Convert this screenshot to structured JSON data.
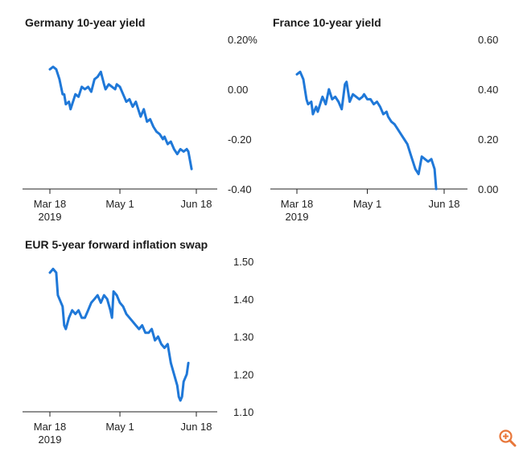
{
  "chart_data": [
    {
      "id": "germany",
      "type": "line",
      "title": "Germany 10-year yield",
      "x_ticks": [
        {
          "day": 0,
          "label": "Mar 18",
          "sub": "2019"
        },
        {
          "day": 44,
          "label": "May 1",
          "sub": ""
        },
        {
          "day": 92,
          "label": "Jun 18",
          "sub": ""
        }
      ],
      "y_ticks": [
        {
          "value": 0.2,
          "label": "0.20%"
        },
        {
          "value": 0.0,
          "label": "0.00"
        },
        {
          "value": -0.2,
          "label": "-0.20"
        },
        {
          "value": -0.4,
          "label": "-0.40"
        }
      ],
      "ylim": [
        -0.4,
        0.2
      ],
      "series": [
        {
          "name": "Germany 10-year yield",
          "color": "#1f78d8",
          "x": [
            0,
            2,
            4,
            6,
            8,
            9,
            10,
            12,
            13,
            15,
            16,
            18,
            20,
            22,
            24,
            26,
            28,
            30,
            32,
            34,
            35,
            37,
            39,
            41,
            42,
            44,
            46,
            48,
            50,
            52,
            54,
            56,
            57,
            59,
            61,
            63,
            65,
            67,
            69,
            71,
            72,
            74,
            76,
            78,
            80,
            82,
            84,
            86,
            87,
            89
          ],
          "y": [
            0.08,
            0.09,
            0.08,
            0.04,
            -0.02,
            -0.02,
            -0.06,
            -0.05,
            -0.08,
            -0.04,
            -0.02,
            -0.03,
            0.01,
            0.0,
            0.01,
            -0.01,
            0.04,
            0.05,
            0.07,
            0.02,
            0.0,
            0.02,
            0.01,
            0.0,
            0.02,
            0.01,
            -0.02,
            -0.05,
            -0.04,
            -0.07,
            -0.05,
            -0.09,
            -0.11,
            -0.08,
            -0.13,
            -0.12,
            -0.15,
            -0.17,
            -0.18,
            -0.2,
            -0.19,
            -0.22,
            -0.21,
            -0.24,
            -0.26,
            -0.24,
            -0.25,
            -0.24,
            -0.25,
            -0.32
          ]
        }
      ]
    },
    {
      "id": "france",
      "type": "line",
      "title": "France 10-year yield",
      "x_ticks": [
        {
          "day": 0,
          "label": "Mar 18",
          "sub": "2019"
        },
        {
          "day": 44,
          "label": "May 1",
          "sub": ""
        },
        {
          "day": 92,
          "label": "Jun 18",
          "sub": ""
        }
      ],
      "y_ticks": [
        {
          "value": 0.6,
          "label": "0.60"
        },
        {
          "value": 0.4,
          "label": "0.40"
        },
        {
          "value": 0.2,
          "label": "0.20"
        },
        {
          "value": 0.0,
          "label": "0.00"
        }
      ],
      "ylim": [
        0.0,
        0.6
      ],
      "series": [
        {
          "name": "France 10-year yield",
          "color": "#1f78d8",
          "x": [
            0,
            2,
            4,
            6,
            7,
            9,
            10,
            12,
            13,
            15,
            16,
            18,
            20,
            22,
            24,
            26,
            28,
            30,
            31,
            33,
            35,
            37,
            39,
            41,
            42,
            44,
            46,
            48,
            50,
            52,
            54,
            56,
            57,
            59,
            61,
            63,
            65,
            67,
            69,
            71,
            72,
            74,
            76,
            78,
            80,
            82,
            84,
            86,
            87
          ],
          "y": [
            0.46,
            0.47,
            0.44,
            0.36,
            0.34,
            0.35,
            0.3,
            0.33,
            0.31,
            0.35,
            0.37,
            0.34,
            0.4,
            0.36,
            0.37,
            0.35,
            0.32,
            0.42,
            0.43,
            0.35,
            0.38,
            0.37,
            0.36,
            0.37,
            0.38,
            0.36,
            0.36,
            0.34,
            0.35,
            0.33,
            0.3,
            0.31,
            0.29,
            0.27,
            0.26,
            0.24,
            0.22,
            0.2,
            0.18,
            0.14,
            0.12,
            0.08,
            0.06,
            0.13,
            0.12,
            0.11,
            0.12,
            0.08,
            0.0
          ]
        }
      ]
    },
    {
      "id": "inflation",
      "type": "line",
      "title": "EUR 5-year forward inflation swap",
      "x_ticks": [
        {
          "day": 0,
          "label": "Mar 18",
          "sub": "2019"
        },
        {
          "day": 44,
          "label": "May 1",
          "sub": ""
        },
        {
          "day": 92,
          "label": "Jun 18",
          "sub": ""
        }
      ],
      "y_ticks": [
        {
          "value": 1.5,
          "label": "1.50"
        },
        {
          "value": 1.4,
          "label": "1.40"
        },
        {
          "value": 1.3,
          "label": "1.30"
        },
        {
          "value": 1.2,
          "label": "1.20"
        },
        {
          "value": 1.1,
          "label": "1.10"
        }
      ],
      "ylim": [
        1.1,
        1.5
      ],
      "series": [
        {
          "name": "EUR 5-year forward inflation swap",
          "color": "#1f78d8",
          "x": [
            0,
            2,
            4,
            5,
            6,
            8,
            9,
            10,
            12,
            14,
            16,
            18,
            20,
            22,
            24,
            26,
            28,
            30,
            32,
            34,
            36,
            38,
            39,
            40,
            42,
            44,
            46,
            48,
            50,
            52,
            54,
            56,
            58,
            60,
            62,
            64,
            66,
            68,
            70,
            72,
            74,
            76,
            78,
            80,
            81,
            82,
            83,
            84,
            86,
            87
          ],
          "y": [
            1.47,
            1.48,
            1.47,
            1.41,
            1.4,
            1.38,
            1.33,
            1.32,
            1.35,
            1.37,
            1.36,
            1.37,
            1.35,
            1.35,
            1.37,
            1.39,
            1.4,
            1.41,
            1.39,
            1.41,
            1.4,
            1.37,
            1.35,
            1.42,
            1.41,
            1.39,
            1.38,
            1.36,
            1.35,
            1.34,
            1.33,
            1.32,
            1.33,
            1.31,
            1.31,
            1.32,
            1.29,
            1.3,
            1.28,
            1.27,
            1.28,
            1.23,
            1.2,
            1.17,
            1.14,
            1.13,
            1.14,
            1.18,
            1.2,
            1.23
          ]
        }
      ]
    }
  ],
  "zoom_icon": "zoom-in-icon",
  "colors": {
    "line": "#1f78d8",
    "axis": "#222222",
    "accent": "#e8773a"
  }
}
